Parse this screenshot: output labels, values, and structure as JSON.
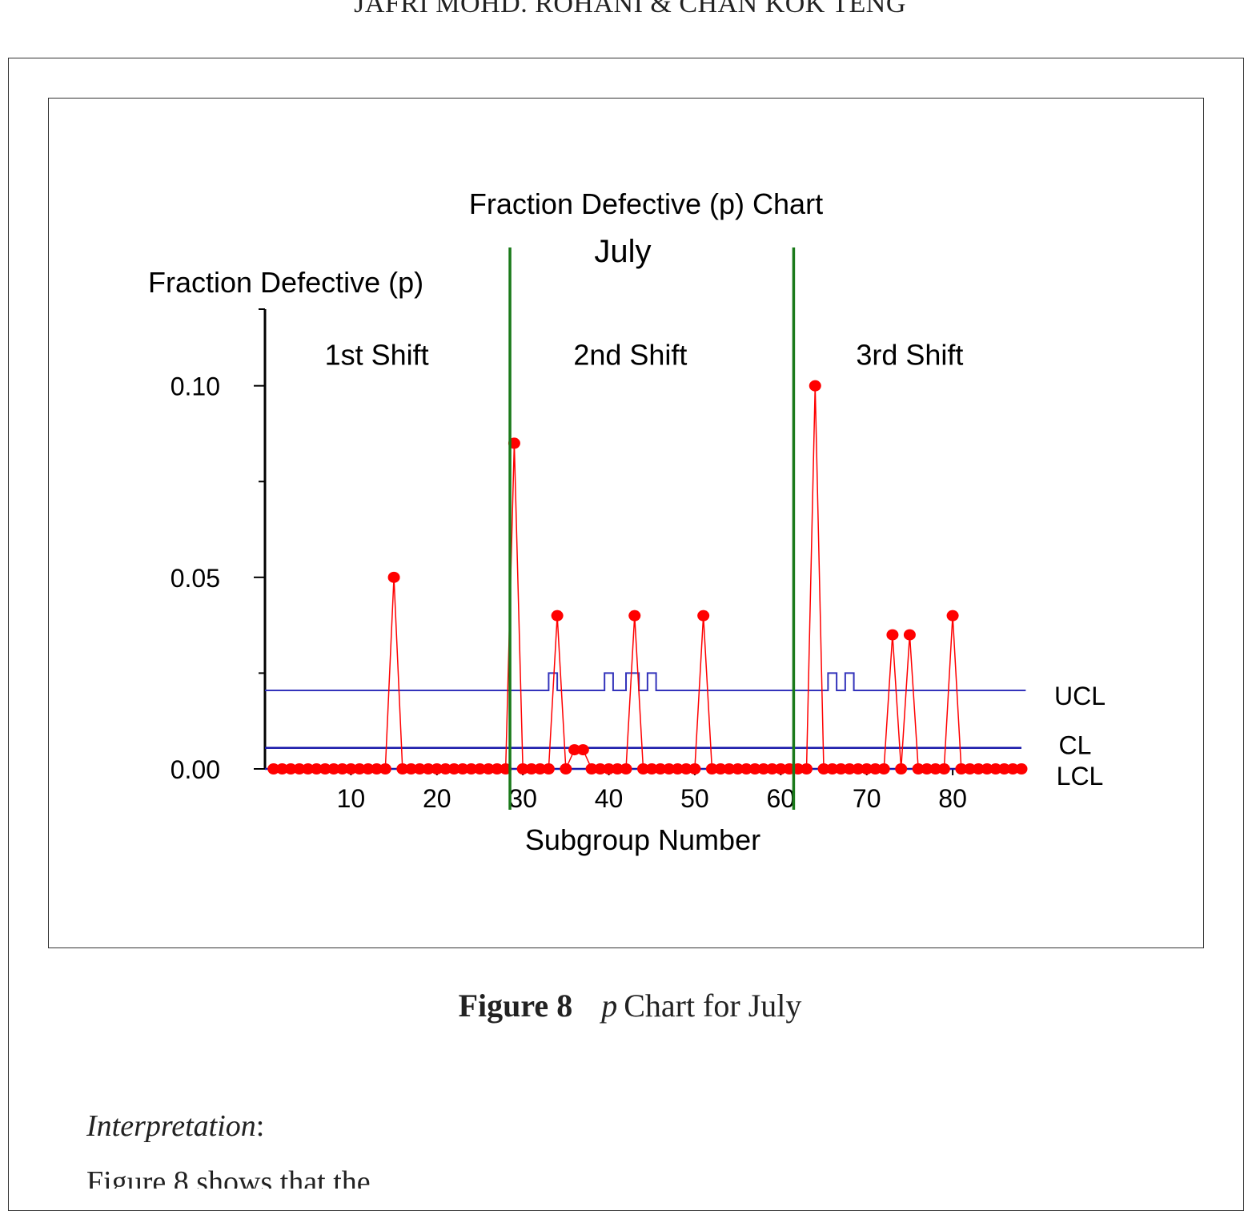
{
  "running_head": "JAFRI MOHD. ROHANI & CHAN KOK TENG",
  "caption": {
    "label": "Figure 8",
    "p": "p",
    "text": "Chart for July"
  },
  "interpretation_label": "Interpretation",
  "interpretation_colon": ":",
  "body_text_partial": "Figure 8 shows that the ...",
  "colors": {
    "points": "#ff0000",
    "ucl": "#3333bb",
    "cl": "#1a1aaa",
    "shift_dividers": "#1a7a1a",
    "axis": "#000000"
  },
  "chart_data": {
    "type": "line",
    "title": "Fraction Defective (p) Chart",
    "subtitle": "July",
    "ylabel": "Fraction Defective (p)",
    "xlabel": "Subgroup Number",
    "xlim": [
      0,
      88
    ],
    "ylim": [
      0,
      0.12
    ],
    "y_ticks": [
      0.0,
      0.05,
      0.1
    ],
    "y_tick_labels": [
      "0.00",
      "0.05",
      "0.10"
    ],
    "x_ticks": [
      10,
      20,
      30,
      40,
      50,
      60,
      70,
      80
    ],
    "x_tick_labels": [
      "10",
      "20",
      "30",
      "40",
      "50",
      "60",
      "70",
      "80"
    ],
    "shift_labels": [
      "1st Shift",
      "2nd Shift",
      "3rd Shift"
    ],
    "shift_label_x": [
      13,
      42.5,
      75
    ],
    "shift_label_y": 0.108,
    "shift_dividers_x": [
      28.5,
      61.5
    ],
    "grid": false,
    "series": [
      {
        "name": "p",
        "x": [
          1,
          2,
          3,
          4,
          5,
          6,
          7,
          8,
          9,
          10,
          11,
          12,
          13,
          14,
          15,
          16,
          17,
          18,
          19,
          20,
          21,
          22,
          23,
          24,
          25,
          26,
          27,
          28,
          29,
          30,
          31,
          32,
          33,
          34,
          35,
          36,
          37,
          38,
          39,
          40,
          41,
          42,
          43,
          44,
          45,
          46,
          47,
          48,
          49,
          50,
          51,
          52,
          53,
          54,
          55,
          56,
          57,
          58,
          59,
          60,
          61,
          62,
          63,
          64,
          65,
          66,
          67,
          68,
          69,
          70,
          71,
          72,
          73,
          74,
          75,
          76,
          77,
          78,
          79,
          80,
          81,
          82,
          83,
          84,
          85,
          86,
          87,
          88
        ],
        "values": [
          0,
          0,
          0,
          0,
          0,
          0,
          0,
          0,
          0,
          0,
          0,
          0,
          0,
          0,
          0.05,
          0,
          0,
          0,
          0,
          0,
          0,
          0,
          0,
          0,
          0,
          0,
          0,
          0,
          0.085,
          0,
          0,
          0,
          0,
          0.04,
          0,
          0.005,
          0.005,
          0,
          0,
          0,
          0,
          0,
          0.04,
          0,
          0,
          0,
          0,
          0,
          0,
          0,
          0.04,
          0,
          0,
          0,
          0,
          0,
          0,
          0,
          0,
          0,
          0,
          0,
          0,
          0.1,
          0,
          0,
          0,
          0,
          0,
          0,
          0,
          0,
          0.035,
          0,
          0.035,
          0,
          0,
          0,
          0,
          0.04,
          0,
          0,
          0,
          0,
          0,
          0,
          0,
          0
        ]
      }
    ],
    "control_limits": {
      "UCL": {
        "label": "UCL",
        "base": 0.0205,
        "bumps": [
          [
            33,
            34,
            0.025
          ],
          [
            39.5,
            40.5,
            0.025
          ],
          [
            42,
            43.5,
            0.025
          ],
          [
            44.5,
            45.5,
            0.025
          ],
          [
            65.5,
            66.5,
            0.025
          ],
          [
            67.5,
            68.5,
            0.025
          ]
        ]
      },
      "CL": {
        "label": "CL",
        "value": 0.0055
      },
      "LCL": {
        "label": "LCL",
        "value": 0.0
      }
    }
  }
}
